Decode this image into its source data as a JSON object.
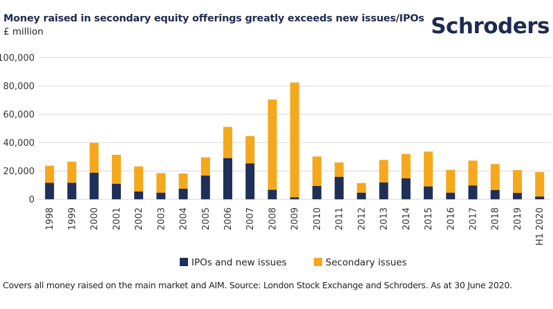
{
  "header": {
    "title": "Money raised in secondary equity offerings greatly exceeds new issues/IPOs",
    "subtitle": "£ million",
    "logo": "Schroders"
  },
  "footnote": "Covers all money raised on the main market and AIM. Source: London Stock Exchange and Schroders. As at 30 June 2020.",
  "colors": {
    "ipos": "#1f2f57",
    "secondary": "#f6a81c",
    "grid": "#d9d9d9",
    "title": "#1e2b50"
  },
  "chart_data": {
    "type": "bar",
    "stacked": true,
    "title": "Money raised in secondary equity offerings greatly exceeds new issues/IPOs",
    "subtitle": "£ million",
    "xlabel": "",
    "ylabel": "£ million",
    "ylim": [
      0,
      100000
    ],
    "yticks": [
      0,
      20000,
      40000,
      60000,
      80000,
      100000
    ],
    "ytick_labels": [
      "0",
      "20,000",
      "40,000",
      "60,000",
      "80,000",
      "100,000"
    ],
    "grid": true,
    "legend_position": "bottom",
    "categories": [
      "1998",
      "1999",
      "2000",
      "2001",
      "2002",
      "2003",
      "2004",
      "2005",
      "2006",
      "2007",
      "2008",
      "2009",
      "2010",
      "2011",
      "2012",
      "2013",
      "2014",
      "2015",
      "2016",
      "2017",
      "2018",
      "2019",
      "H1 2020"
    ],
    "series": [
      {
        "name": "IPOs and new issues",
        "color": "#1f2f57",
        "values": [
          11700,
          11700,
          18800,
          11000,
          5500,
          4700,
          7500,
          16800,
          29100,
          25400,
          6700,
          1400,
          9400,
          15900,
          4700,
          11900,
          14800,
          9100,
          4700,
          9800,
          6600,
          4500,
          2000
        ]
      },
      {
        "name": "Secondary issues",
        "color": "#f6a81c",
        "values": [
          12000,
          14900,
          21000,
          20400,
          17700,
          13800,
          10700,
          12800,
          22000,
          19200,
          63700,
          81000,
          20800,
          10100,
          6800,
          15900,
          17200,
          24600,
          16100,
          17500,
          18300,
          16100,
          17200
        ]
      }
    ]
  }
}
